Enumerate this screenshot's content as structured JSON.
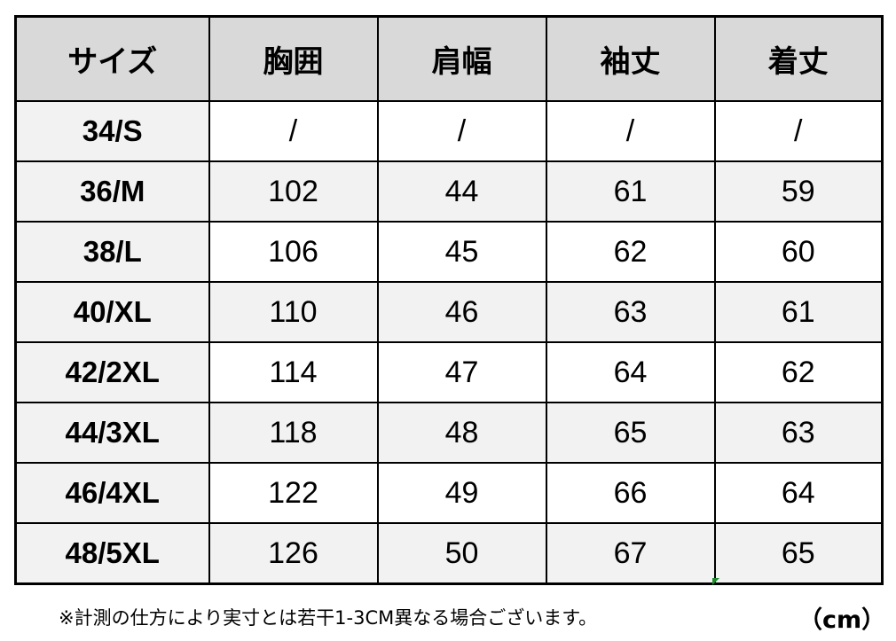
{
  "table": {
    "headers": [
      "サイズ",
      "胸囲",
      "肩幅",
      "袖丈",
      "着丈"
    ],
    "rows": [
      [
        "34/S",
        "/",
        "/",
        "/",
        "/"
      ],
      [
        "36/M",
        "102",
        "44",
        "61",
        "59"
      ],
      [
        "38/L",
        "106",
        "45",
        "62",
        "60"
      ],
      [
        "40/XL",
        "110",
        "46",
        "63",
        "61"
      ],
      [
        "42/2XL",
        "114",
        "47",
        "64",
        "62"
      ],
      [
        "44/3XL",
        "118",
        "48",
        "65",
        "63"
      ],
      [
        "46/4XL",
        "122",
        "49",
        "66",
        "64"
      ],
      [
        "48/5XL",
        "126",
        "50",
        "67",
        "65"
      ]
    ]
  },
  "footer": {
    "note": "※計測の仕方により実寸とは若干1-3CM異なる場合ございます。",
    "unit": "（cm）"
  },
  "colors": {
    "header_bg": "#d9d9d9",
    "alt_row_bg": "#f2f2f2"
  }
}
